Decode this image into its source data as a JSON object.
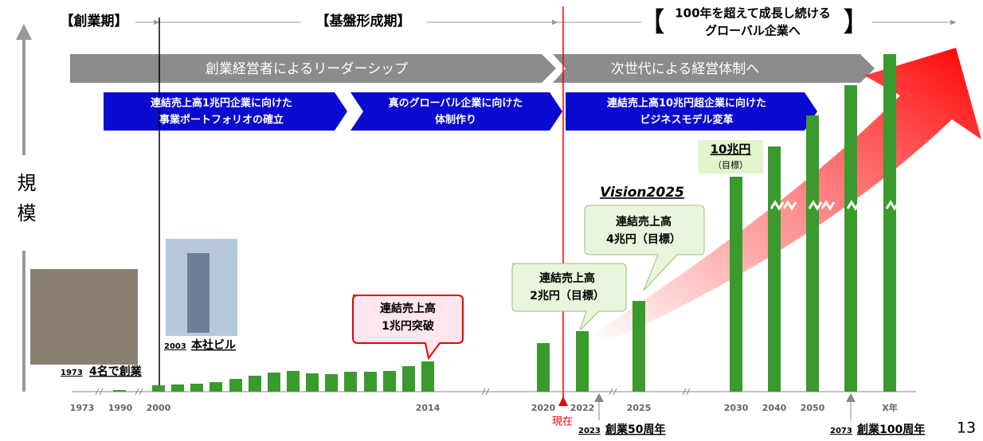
{
  "phases": {
    "founding": "【創業期】",
    "foundation": "【基盤形成期】",
    "future": {
      "open": "【",
      "lines": [
        "100年を超えて成長し続ける",
        "グローバル企業へ"
      ],
      "close": "】"
    }
  },
  "y_axis_label": "規模",
  "leadership": [
    "創業経営者によるリーダーシップ",
    "次世代による経営体制へ"
  ],
  "strategies": [
    [
      "連結売上高1兆円企業に向けた",
      "事業ポートフォリオの確立"
    ],
    [
      "真のグローバル企業に向けた",
      "体制作り"
    ],
    [
      "連結売上高10兆円超企業に向けた",
      "ビジネスモデル変革"
    ]
  ],
  "callouts": {
    "trillion1": [
      "連結売上高",
      "1兆円突破"
    ],
    "trillion2": [
      "連結売上高",
      "2兆円（目標）"
    ],
    "trillion4": [
      "連結売上高",
      "4兆円（目標）"
    ],
    "trillion10": [
      "10兆円",
      "（目標）"
    ]
  },
  "vision": "Vision2025",
  "photos": {
    "founding": {
      "year": "1973",
      "caption": "4名で創業"
    },
    "hq": {
      "year": "2003",
      "caption": "本社ビル"
    }
  },
  "x_labels": [
    "1973",
    "1990",
    "2000",
    "2014",
    "2020",
    "2022",
    "2025",
    "2030",
    "2040",
    "2050",
    "X年"
  ],
  "now": "現在",
  "milestones": [
    {
      "year": "2023",
      "caption": "創業50周年"
    },
    {
      "year": "2073",
      "caption": "創業100周年"
    }
  ],
  "page_number": "13"
}
